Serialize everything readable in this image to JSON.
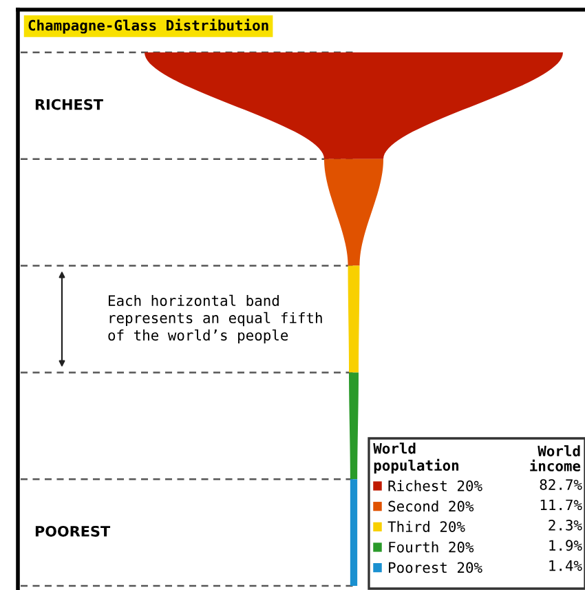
{
  "chart_data": {
    "type": "other",
    "title": "Champagne-Glass Distribution",
    "categories": [
      "Richest 20%",
      "Second 20%",
      "Third 20%",
      "Fourth 20%",
      "Poorest 20%"
    ],
    "values": [
      82.7,
      11.7,
      2.3,
      1.9,
      1.4
    ],
    "value_labels": [
      "82.7%",
      "11.7%",
      "2.3%",
      "1.9%",
      "1.4%"
    ],
    "colors": [
      "#c01a00",
      "#e05200",
      "#f8d000",
      "#2a9a2a",
      "#1a90d0"
    ],
    "legend_title": "World\npopulation",
    "annotations": [
      "RICHEST",
      "POOREST",
      "Each horizontal band\nrepresents an equal fifth\nof the world’s people",
      "World\nincome"
    ]
  }
}
